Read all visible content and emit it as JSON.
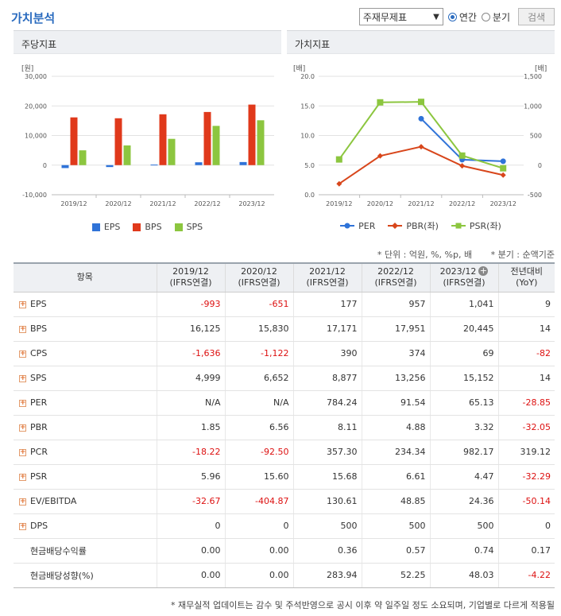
{
  "header": {
    "title": "가치분석",
    "select_value": "주재무제표",
    "radio_annual": "연간",
    "radio_quarter": "분기",
    "search_label": "검색"
  },
  "panels": {
    "left_title": "주당지표",
    "right_title": "가치지표"
  },
  "colors": {
    "eps": "#2f73d8",
    "bps": "#e0391b",
    "sps": "#8cc63f",
    "per": "#2f73d8",
    "pbr": "#d8461b",
    "psr": "#8cc63f"
  },
  "chart_data": [
    {
      "type": "bar",
      "categories": [
        "2019/12",
        "2020/12",
        "2021/12",
        "2022/12",
        "2023/12"
      ],
      "ylabel": "[원]",
      "ylim": [
        -10000,
        30000
      ],
      "yticks": [
        "30,000",
        "20,000",
        "10,000",
        "0",
        "-10,000"
      ],
      "series": [
        {
          "name": "EPS",
          "values": [
            -993,
            -651,
            177,
            957,
            1041
          ]
        },
        {
          "name": "BPS",
          "values": [
            16125,
            15830,
            17171,
            17951,
            20445
          ]
        },
        {
          "name": "SPS",
          "values": [
            4999,
            6652,
            8877,
            13256,
            15152
          ]
        }
      ]
    },
    {
      "type": "line",
      "categories": [
        "2019/12",
        "2020/12",
        "2021/12",
        "2022/12",
        "2023/12"
      ],
      "ylabel_left": "[배]",
      "ylabel_right": "[배]",
      "ylim_left": [
        0,
        20
      ],
      "ylim_right": [
        -500,
        1500
      ],
      "yticks_left": [
        "20.0",
        "15.0",
        "10.0",
        "5.0",
        "0.0"
      ],
      "yticks_right": [
        "1,500",
        "1,000",
        "500",
        "0",
        "-500"
      ],
      "series": [
        {
          "name": "PER",
          "axis": "right",
          "values": [
            null,
            null,
            784.24,
            91.54,
            65.13
          ]
        },
        {
          "name": "PBR(좌)",
          "axis": "left",
          "values": [
            1.85,
            6.56,
            8.11,
            4.88,
            3.32
          ]
        },
        {
          "name": "PSR(좌)",
          "axis": "left",
          "values": [
            5.96,
            15.6,
            15.68,
            6.61,
            4.47
          ]
        }
      ]
    }
  ],
  "notes": {
    "unit": "* 단위 : 억원, %, %p, 배",
    "quarter": "* 분기 : 순액기준"
  },
  "table": {
    "header_item": "항목",
    "columns": [
      {
        "year": "2019/12",
        "sub": "(IFRS연결)"
      },
      {
        "year": "2020/12",
        "sub": "(IFRS연결)"
      },
      {
        "year": "2021/12",
        "sub": "(IFRS연결)"
      },
      {
        "year": "2022/12",
        "sub": "(IFRS연결)"
      },
      {
        "year": "2023/12",
        "sub": "(IFRS연결)"
      },
      {
        "year": "전년대비",
        "sub": "(YoY)"
      }
    ],
    "rows": [
      {
        "label": "EPS",
        "expand": true,
        "values": [
          "-993",
          "-651",
          "177",
          "957",
          "1,041",
          "9"
        ]
      },
      {
        "label": "BPS",
        "expand": true,
        "values": [
          "16,125",
          "15,830",
          "17,171",
          "17,951",
          "20,445",
          "14"
        ]
      },
      {
        "label": "CPS",
        "expand": true,
        "values": [
          "-1,636",
          "-1,122",
          "390",
          "374",
          "69",
          "-82"
        ]
      },
      {
        "label": "SPS",
        "expand": true,
        "values": [
          "4,999",
          "6,652",
          "8,877",
          "13,256",
          "15,152",
          "14"
        ]
      },
      {
        "label": "PER",
        "expand": true,
        "values": [
          "N/A",
          "N/A",
          "784.24",
          "91.54",
          "65.13",
          "-28.85"
        ]
      },
      {
        "label": "PBR",
        "expand": true,
        "values": [
          "1.85",
          "6.56",
          "8.11",
          "4.88",
          "3.32",
          "-32.05"
        ]
      },
      {
        "label": "PCR",
        "expand": true,
        "values": [
          "-18.22",
          "-92.50",
          "357.30",
          "234.34",
          "982.17",
          "319.12"
        ]
      },
      {
        "label": "PSR",
        "expand": true,
        "values": [
          "5.96",
          "15.60",
          "15.68",
          "6.61",
          "4.47",
          "-32.29"
        ]
      },
      {
        "label": "EV/EBITDA",
        "expand": true,
        "values": [
          "-32.67",
          "-404.87",
          "130.61",
          "48.85",
          "24.36",
          "-50.14"
        ]
      },
      {
        "label": "DPS",
        "expand": true,
        "values": [
          "0",
          "0",
          "500",
          "500",
          "500",
          "0"
        ]
      },
      {
        "label": "현금배당수익률",
        "expand": false,
        "values": [
          "0.00",
          "0.00",
          "0.36",
          "0.57",
          "0.74",
          "0.17"
        ]
      },
      {
        "label": "현금배당성향(%)",
        "expand": false,
        "values": [
          "0.00",
          "0.00",
          "283.94",
          "52.25",
          "48.03",
          "-4.22"
        ]
      }
    ]
  },
  "footnote": "* 재무실적 업데이트는 감수 및 주석반영으로 공시 이후 약 일주일 정도 소요되며, 기업별로 다르게 적용될"
}
